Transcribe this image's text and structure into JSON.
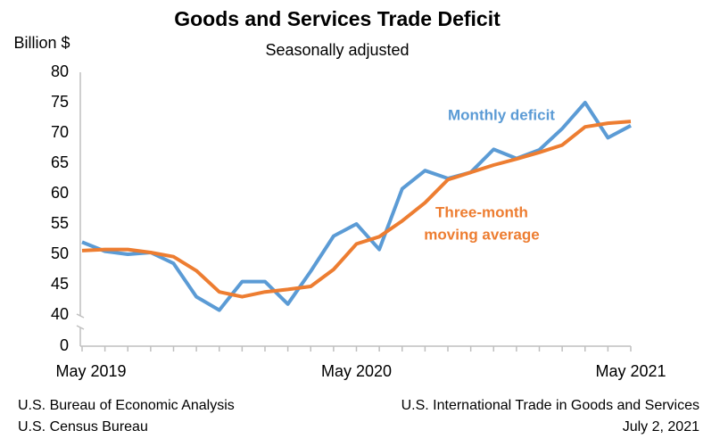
{
  "chart_data": {
    "type": "line",
    "title": "Goods and Services Trade Deficit",
    "subtitle": "Seasonally adjusted",
    "y_label": "Billion $",
    "categories": [
      "May 2019",
      null,
      null,
      null,
      null,
      null,
      null,
      null,
      null,
      null,
      null,
      null,
      "May 2020",
      null,
      null,
      null,
      null,
      null,
      null,
      null,
      null,
      null,
      null,
      null,
      "May 2021"
    ],
    "series": [
      {
        "name": "Monthly deficit",
        "color": "#5b9bd5",
        "values": [
          52,
          50.5,
          50,
          50.3,
          48.5,
          43,
          40.8,
          45.5,
          45.5,
          41.8,
          47.2,
          53,
          55,
          50.8,
          60.8,
          63.8,
          62.5,
          63.5,
          67.3,
          65.8,
          67.2,
          70.7,
          75,
          69.2,
          71.2
        ]
      },
      {
        "name": "Three-month moving average",
        "color": "#ed7d31",
        "values": [
          50.6,
          50.8,
          50.8,
          50.3,
          49.6,
          47.3,
          43.8,
          43,
          43.8,
          44.2,
          44.7,
          47.5,
          51.7,
          52.9,
          55.5,
          58.5,
          62.3,
          63.5,
          64.7,
          65.7,
          66.8,
          68,
          71,
          71.6,
          71.9
        ]
      }
    ],
    "annotations": [
      {
        "lines": [
          "Monthly deficit"
        ],
        "color": "#5b9bd5"
      },
      {
        "lines": [
          "Three-month",
          "moving average"
        ],
        "color": "#ed7d31"
      }
    ],
    "ylim": [
      0,
      80
    ],
    "axis_break": {
      "from": 0,
      "to": 40
    },
    "yticks": [
      0,
      40,
      45,
      50,
      55,
      60,
      65,
      70,
      75,
      80
    ],
    "source": [
      "U.S. Bureau of Economic Analysis",
      "U.S. Census Bureau"
    ],
    "release": [
      "U.S. International Trade in Goods and Services",
      "July 2, 2021"
    ]
  }
}
